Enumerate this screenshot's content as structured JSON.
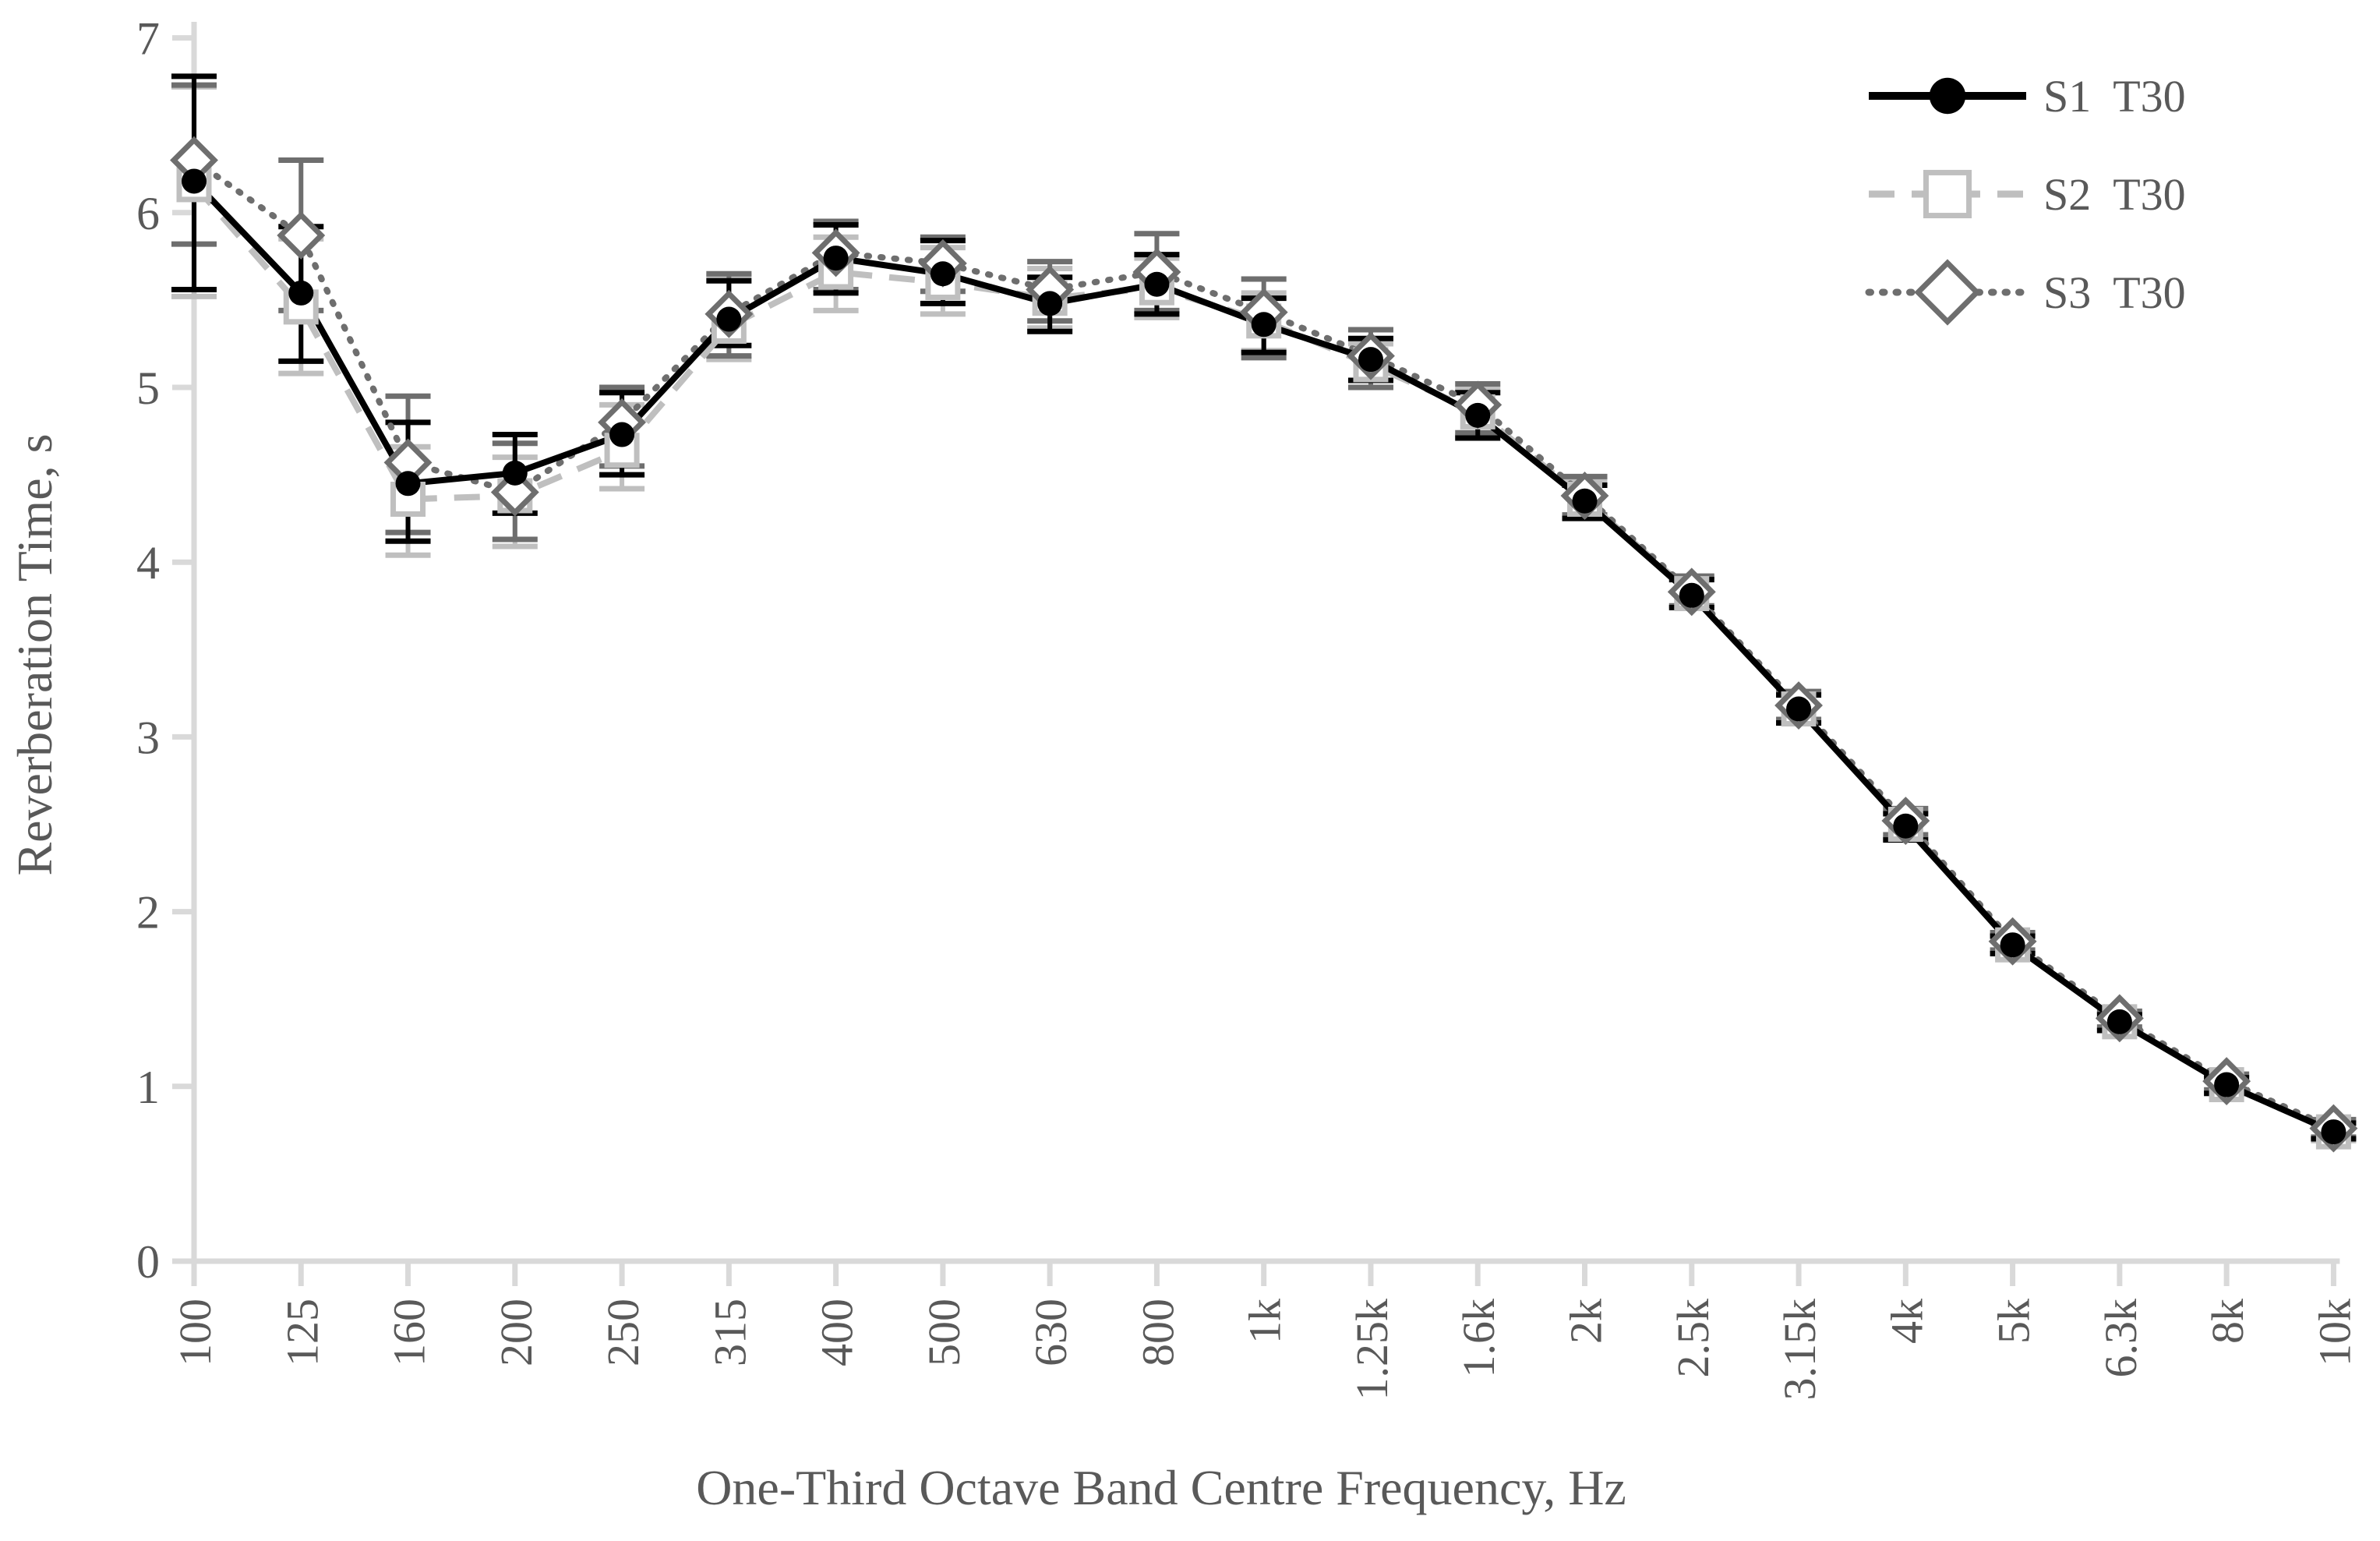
{
  "page": {
    "background": "#FFFFFF"
  },
  "chart_data": {
    "type": "line",
    "title": "",
    "xlabel": "One-Third Octave Band Centre Frequency, Hz",
    "ylabel": "Reverberation Time, s",
    "ylim": [
      0,
      7
    ],
    "yticks": [
      0,
      1,
      2,
      3,
      4,
      5,
      6,
      7
    ],
    "grid": false,
    "legend_position": "top-right",
    "axis_color": "#D9D9D9",
    "label_color": "#595959",
    "error_bars": true,
    "categories": [
      "100",
      "125",
      "160",
      "200",
      "250",
      "315",
      "400",
      "500",
      "630",
      "800",
      "1k",
      "1.25k",
      "1.6k",
      "2k",
      "2.5k",
      "3.15k",
      "4k",
      "5k",
      "6.3k",
      "8k",
      "10k"
    ],
    "series": [
      {
        "name": "S1",
        "legend_label": "S1  T30",
        "color": "#000000",
        "line_style": "solid",
        "marker": "filled-circle",
        "values": [
          6.18,
          5.54,
          4.45,
          4.51,
          4.73,
          5.39,
          5.74,
          5.65,
          5.48,
          5.59,
          5.36,
          5.16,
          4.84,
          4.35,
          3.81,
          3.16,
          2.49,
          1.81,
          1.37,
          1.01,
          0.74
        ],
        "err_upper": [
          6.78,
          5.92,
          4.8,
          4.73,
          4.97,
          5.61,
          5.93,
          5.84,
          5.63,
          5.76,
          5.51,
          5.28,
          4.97,
          4.44,
          3.9,
          3.24,
          2.56,
          1.86,
          1.41,
          1.05,
          0.79
        ],
        "err_lower": [
          5.56,
          5.15,
          4.12,
          4.28,
          4.5,
          5.24,
          5.54,
          5.48,
          5.32,
          5.42,
          5.2,
          5.04,
          4.71,
          4.25,
          3.74,
          3.08,
          2.41,
          1.76,
          1.32,
          0.96,
          0.7
        ]
      },
      {
        "name": "S2",
        "legend_label": "S2  T30",
        "color": "#BFBFBF",
        "line_style": "dashed",
        "marker": "open-square",
        "values": [
          6.16,
          5.46,
          4.36,
          4.38,
          4.64,
          5.35,
          5.66,
          5.6,
          5.51,
          5.57,
          5.38,
          5.13,
          4.86,
          4.36,
          3.82,
          3.16,
          2.5,
          1.81,
          1.37,
          1.01,
          0.74
        ],
        "err_upper": [
          6.72,
          5.85,
          4.66,
          4.6,
          4.9,
          5.64,
          5.86,
          5.8,
          5.68,
          5.74,
          5.54,
          5.25,
          4.99,
          4.46,
          3.91,
          3.25,
          2.57,
          1.87,
          1.42,
          1.05,
          0.79
        ],
        "err_lower": [
          5.52,
          5.08,
          4.04,
          4.09,
          4.42,
          5.16,
          5.44,
          5.42,
          5.34,
          5.4,
          5.21,
          5.0,
          4.72,
          4.26,
          3.74,
          3.08,
          2.42,
          1.76,
          1.32,
          0.96,
          0.69
        ]
      },
      {
        "name": "S3",
        "legend_label": "S3  T30",
        "color": "#6E6E6E",
        "line_style": "dotted",
        "marker": "open-diamond",
        "values": [
          6.3,
          5.87,
          4.57,
          4.4,
          4.8,
          5.42,
          5.77,
          5.71,
          5.56,
          5.66,
          5.43,
          5.18,
          4.9,
          4.38,
          3.83,
          3.18,
          2.52,
          1.83,
          1.39,
          1.03,
          0.76
        ],
        "err_upper": [
          6.73,
          6.3,
          4.95,
          4.68,
          5.0,
          5.65,
          5.95,
          5.86,
          5.72,
          5.88,
          5.62,
          5.33,
          5.02,
          4.49,
          3.92,
          3.26,
          2.59,
          1.88,
          1.43,
          1.07,
          0.81
        ],
        "err_lower": [
          5.82,
          5.44,
          4.17,
          4.13,
          4.55,
          5.18,
          5.56,
          5.55,
          5.38,
          5.44,
          5.17,
          5.0,
          4.74,
          4.27,
          3.75,
          3.1,
          2.44,
          1.78,
          1.34,
          0.98,
          0.71
        ]
      }
    ]
  }
}
